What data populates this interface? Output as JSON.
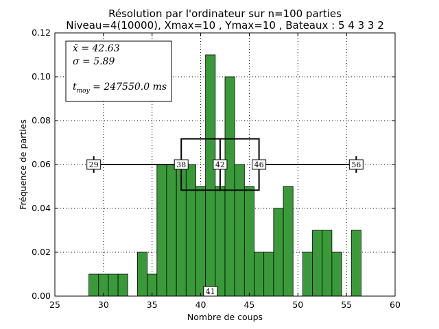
{
  "chart_data": {
    "type": "bar",
    "title": "Résolution par l'ordinateur sur n=100 parties",
    "subtitle": "Niveau=4(10000), Xmax=10 , Ymax=10 , Bateaux : 5 4 3 3 2",
    "xlabel": "Nombre de coups",
    "ylabel": "Fréquence de parties",
    "xlim": [
      25,
      60
    ],
    "ylim": [
      0,
      0.12
    ],
    "xticks": [
      25,
      30,
      35,
      40,
      45,
      50,
      55,
      60
    ],
    "xtick_labels": [
      "25",
      "30",
      "35",
      "40",
      "45",
      "50",
      "55",
      "60"
    ],
    "yticks": [
      0,
      0.02,
      0.04,
      0.06,
      0.08,
      0.1,
      0.12
    ],
    "ytick_labels": [
      "0.00",
      "0.02",
      "0.04",
      "0.06",
      "0.08",
      "0.10",
      "0.12"
    ],
    "grid": true,
    "bar_color": "#3a9a3a",
    "bin_width": 1,
    "x": [
      29,
      30,
      31,
      32,
      33,
      34,
      35,
      36,
      37,
      38,
      39,
      40,
      41,
      42,
      43,
      44,
      45,
      46,
      47,
      48,
      49,
      50,
      51,
      52,
      53,
      54,
      55,
      56
    ],
    "values": [
      0.01,
      0.01,
      0.01,
      0.01,
      0,
      0.02,
      0.01,
      0.06,
      0.06,
      0.06,
      0.06,
      0.05,
      0.11,
      0.05,
      0.1,
      0.06,
      0.05,
      0.02,
      0.02,
      0.04,
      0.05,
      0,
      0.02,
      0.03,
      0.03,
      0.02,
      0,
      0.03
    ],
    "stats": {
      "mean_label": "x̄ = 42.63",
      "sigma_label": "σ = 5.89",
      "time_label": "t",
      "time_sub": "moy",
      "time_value": " = 247550.0 ms"
    },
    "boxplot": {
      "whisker_y": 0.06,
      "box_low": 0.0483,
      "box_high": 0.0717,
      "min": 29,
      "q1": 38,
      "median": 42,
      "q3": 46,
      "max": 56,
      "labels": [
        "29",
        "38",
        "42",
        "46",
        "56"
      ]
    },
    "mode_marker": {
      "x": 41,
      "label": "41"
    }
  }
}
